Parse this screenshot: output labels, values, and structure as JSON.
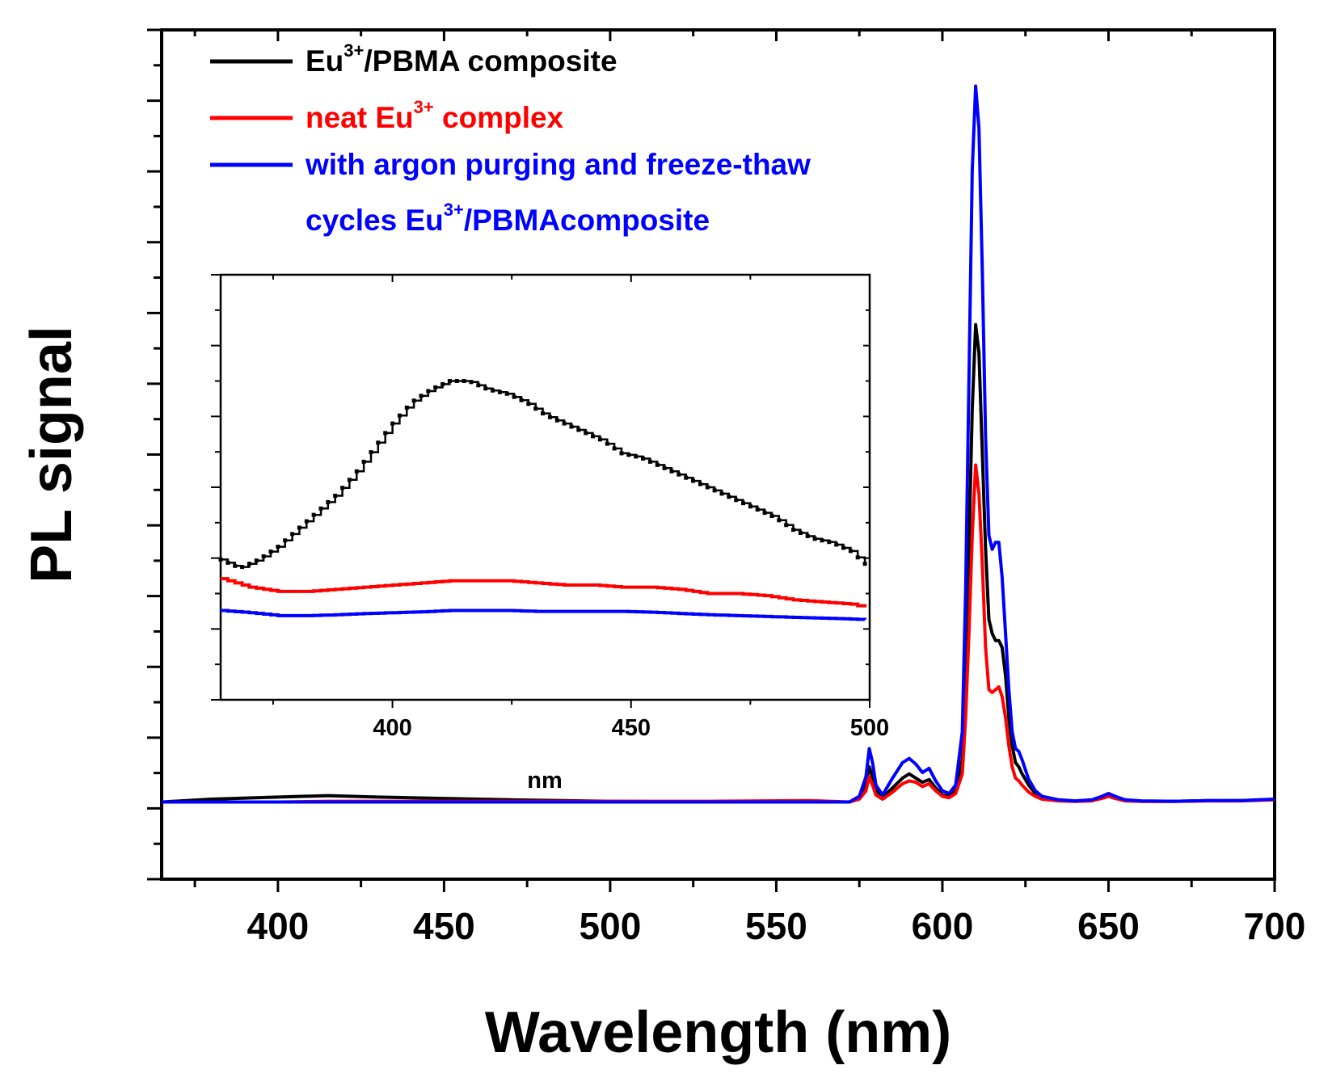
{
  "chart_data": {
    "type": "line",
    "title": "",
    "xlabel": "Wavelength (nm)",
    "ylabel": "PL signal",
    "xlim": [
      365,
      700
    ],
    "ylim": [
      -0.55,
      5.5
    ],
    "xticks": [
      400,
      450,
      500,
      550,
      600,
      650,
      700
    ],
    "grid": false,
    "legend_position": "top-left",
    "legend": [
      {
        "series": 0,
        "lines": [
          {
            "pre": "Eu",
            "sup": "3+",
            "post": "/PBMA composite"
          }
        ]
      },
      {
        "series": 1,
        "lines": [
          {
            "pre": "neat Eu",
            "sup": "3+",
            "post": " complex"
          }
        ]
      },
      {
        "series": 2,
        "lines": [
          {
            "pre": "with argon purging and freeze-thaw",
            "sup": "",
            "post": ""
          },
          {
            "pre": "cycles Eu",
            "sup": "3+",
            "post": "/PBMAcomposite"
          }
        ]
      }
    ],
    "series": [
      {
        "name": "Eu3+/PBMA composite",
        "color": "#000000",
        "x": [
          365,
          380,
          400,
          415,
          430,
          450,
          470,
          500,
          530,
          560,
          572,
          575,
          577,
          578,
          579,
          580,
          582,
          585,
          588,
          590,
          592,
          594,
          596,
          598,
          600,
          602,
          604,
          606,
          607,
          608,
          609,
          610,
          611,
          612,
          613,
          614,
          615,
          616,
          617,
          618,
          619,
          620,
          621,
          622,
          623,
          624,
          626,
          628,
          630,
          635,
          640,
          645,
          648,
          650,
          652,
          655,
          660,
          670,
          680,
          690,
          700
        ],
        "y": [
          0.0,
          0.02,
          0.035,
          0.045,
          0.035,
          0.025,
          0.015,
          0.005,
          0.0,
          0.0,
          0.0,
          0.03,
          0.12,
          0.25,
          0.18,
          0.08,
          0.03,
          0.1,
          0.17,
          0.2,
          0.17,
          0.14,
          0.16,
          0.1,
          0.05,
          0.04,
          0.08,
          0.3,
          0.9,
          1.8,
          2.8,
          3.4,
          3.2,
          2.5,
          1.8,
          1.3,
          1.2,
          1.15,
          1.15,
          1.1,
          0.9,
          0.6,
          0.4,
          0.28,
          0.25,
          0.2,
          0.12,
          0.06,
          0.03,
          0.01,
          0.005,
          0.01,
          0.03,
          0.05,
          0.03,
          0.01,
          0.005,
          0.005,
          0.01,
          0.01,
          0.02
        ]
      },
      {
        "name": "neat Eu3+ complex",
        "color": "#ff0000",
        "x": [
          365,
          380,
          400,
          415,
          430,
          450,
          470,
          500,
          530,
          560,
          572,
          575,
          577,
          578,
          579,
          580,
          582,
          585,
          588,
          590,
          592,
          594,
          596,
          598,
          600,
          602,
          604,
          606,
          607,
          608,
          609,
          610,
          611,
          612,
          613,
          614,
          615,
          616,
          617,
          618,
          619,
          620,
          621,
          622,
          623,
          624,
          626,
          628,
          630,
          635,
          640,
          645,
          648,
          650,
          652,
          655,
          660,
          670,
          680,
          690,
          700
        ],
        "y": [
          0.0,
          0.0,
          0.0,
          0.005,
          0.005,
          0.005,
          0.005,
          0.005,
          0.005,
          0.01,
          0.0,
          0.02,
          0.08,
          0.18,
          0.12,
          0.05,
          0.02,
          0.07,
          0.13,
          0.15,
          0.14,
          0.11,
          0.13,
          0.08,
          0.04,
          0.03,
          0.06,
          0.2,
          0.6,
          1.2,
          1.9,
          2.4,
          2.2,
          1.7,
          1.1,
          0.8,
          0.78,
          0.8,
          0.82,
          0.75,
          0.6,
          0.4,
          0.25,
          0.17,
          0.15,
          0.12,
          0.07,
          0.04,
          0.02,
          0.008,
          0.004,
          0.008,
          0.025,
          0.04,
          0.025,
          0.008,
          0.004,
          0.004,
          0.008,
          0.008,
          0.015
        ]
      },
      {
        "name": "with argon purging and freeze-thaw cycles Eu3+/PBMAcomposite",
        "color": "#0000ff",
        "x": [
          365,
          380,
          400,
          415,
          430,
          450,
          470,
          500,
          530,
          560,
          572,
          575,
          577,
          578,
          579,
          580,
          582,
          585,
          588,
          590,
          592,
          594,
          596,
          598,
          600,
          602,
          604,
          606,
          607,
          608,
          609,
          610,
          611,
          612,
          613,
          614,
          615,
          616,
          617,
          618,
          619,
          620,
          621,
          622,
          623,
          624,
          626,
          628,
          630,
          635,
          640,
          645,
          648,
          650,
          652,
          655,
          660,
          670,
          680,
          690,
          700
        ],
        "y": [
          0.0,
          0.0,
          0.0,
          0.0,
          0.0,
          0.0,
          0.0,
          0.0,
          0.0,
          0.0,
          0.0,
          0.04,
          0.18,
          0.38,
          0.28,
          0.12,
          0.05,
          0.17,
          0.28,
          0.31,
          0.27,
          0.21,
          0.24,
          0.15,
          0.08,
          0.06,
          0.12,
          0.5,
          1.5,
          3.0,
          4.5,
          5.1,
          4.8,
          3.8,
          2.6,
          1.9,
          1.8,
          1.85,
          1.85,
          1.6,
          1.2,
          0.8,
          0.5,
          0.38,
          0.36,
          0.3,
          0.16,
          0.08,
          0.04,
          0.015,
          0.008,
          0.015,
          0.04,
          0.06,
          0.04,
          0.015,
          0.008,
          0.005,
          0.01,
          0.01,
          0.02
        ]
      }
    ],
    "inset": {
      "xlabel": "nm",
      "xlim": [
        364,
        500
      ],
      "ylim": [
        0,
        100
      ],
      "xticks": [
        400,
        450,
        500
      ],
      "series": [
        {
          "name": "Eu3+/PBMA composite",
          "color": "#000000",
          "x": [
            364,
            368,
            372,
            376,
            380,
            384,
            388,
            392,
            396,
            400,
            404,
            408,
            412,
            416,
            418,
            420,
            424,
            428,
            432,
            436,
            440,
            444,
            448,
            452,
            456,
            460,
            464,
            468,
            472,
            476,
            480,
            484,
            488,
            492,
            496,
            500
          ],
          "y": [
            33,
            31,
            33,
            36,
            40,
            44,
            48,
            53,
            59,
            65,
            70,
            73,
            75,
            75,
            74,
            73,
            72,
            70,
            67,
            65,
            63,
            61,
            58,
            57,
            55,
            53,
            51,
            49,
            47,
            45,
            43,
            40,
            38,
            37,
            35,
            31
          ]
        },
        {
          "name": "neat Eu3+ complex",
          "color": "#ff0000",
          "x": [
            364,
            370,
            376,
            382,
            388,
            394,
            400,
            406,
            412,
            418,
            424,
            430,
            436,
            442,
            448,
            454,
            460,
            466,
            472,
            478,
            484,
            490,
            496,
            500
          ],
          "y": [
            28.5,
            26.5,
            25.5,
            25.5,
            26,
            26.5,
            27,
            27.5,
            28,
            28,
            28,
            27.5,
            27,
            27,
            26.5,
            26.5,
            26,
            25,
            25,
            24.5,
            23.5,
            23,
            22.5,
            21.5
          ]
        },
        {
          "name": "with argon purging and freeze-thaw cycles Eu3+/PBMAcomposite",
          "color": "#0000ff",
          "x": [
            364,
            370,
            376,
            382,
            388,
            394,
            400,
            406,
            412,
            418,
            424,
            430,
            436,
            442,
            448,
            454,
            460,
            466,
            472,
            478,
            484,
            490,
            496,
            500
          ],
          "y": [
            21,
            20.5,
            19.8,
            19.8,
            20,
            20.3,
            20.5,
            20.7,
            21,
            21,
            21,
            20.8,
            20.8,
            20.8,
            20.8,
            20.6,
            20.3,
            20,
            19.8,
            19.6,
            19.4,
            19.2,
            19,
            18.8
          ]
        }
      ]
    }
  }
}
